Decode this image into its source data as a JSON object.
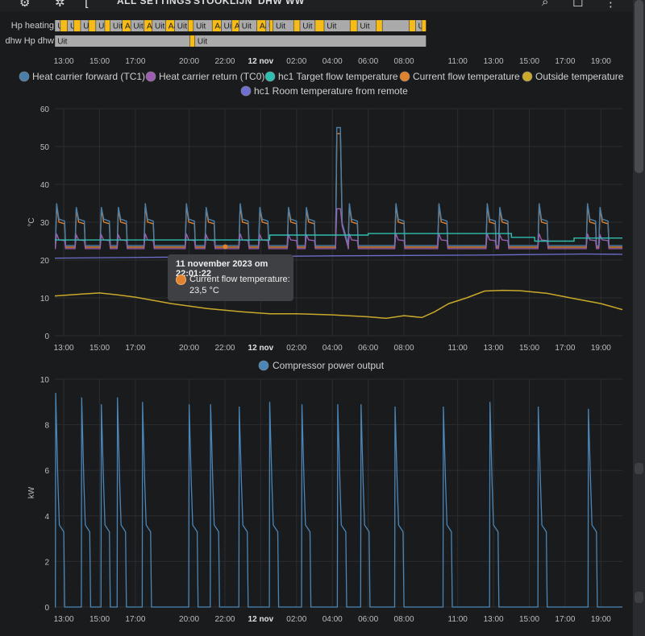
{
  "topbar": {
    "tab_settings": "ALL SETTINGS",
    "tab_stooklijn": "STOOKLIJN",
    "tab_dhw": "DHW WW"
  },
  "timeline": {
    "rows": [
      {
        "label": "Hp heating",
        "segments": [
          {
            "text": "Uit",
            "s": 0.01,
            "e": 0.32,
            "state": "off"
          },
          {
            "text": "",
            "s": 0.32,
            "e": 0.72,
            "state": "on"
          },
          {
            "text": "Uit",
            "s": 0.72,
            "e": 1.07,
            "state": "off"
          },
          {
            "text": "",
            "s": 1.07,
            "e": 1.45,
            "state": "on"
          },
          {
            "text": "Uit",
            "s": 1.45,
            "e": 1.9,
            "state": "off"
          },
          {
            "text": "",
            "s": 1.9,
            "e": 2.3,
            "state": "on"
          },
          {
            "text": "Uit",
            "s": 2.3,
            "e": 2.8,
            "state": "off"
          },
          {
            "text": "",
            "s": 2.8,
            "e": 3.1,
            "state": "on"
          },
          {
            "text": "Uit",
            "s": 3.1,
            "e": 3.78,
            "state": "off"
          },
          {
            "text": "Aan",
            "s": 3.78,
            "e": 4.25,
            "state": "on"
          },
          {
            "text": "Uit",
            "s": 4.25,
            "e": 5.0,
            "state": "off"
          },
          {
            "text": "Aan",
            "s": 5.0,
            "e": 5.45,
            "state": "on"
          },
          {
            "text": "Uit",
            "s": 5.45,
            "e": 6.2,
            "state": "off"
          },
          {
            "text": "Aan",
            "s": 6.2,
            "e": 6.7,
            "state": "on"
          },
          {
            "text": "Uit",
            "s": 6.7,
            "e": 7.45,
            "state": "off"
          },
          {
            "text": "",
            "s": 7.45,
            "e": 7.75,
            "state": "on"
          },
          {
            "text": "Uit",
            "s": 7.75,
            "e": 8.8,
            "state": "off"
          },
          {
            "text": "Aan",
            "s": 8.8,
            "e": 9.3,
            "state": "on"
          },
          {
            "text": "Uit",
            "s": 9.3,
            "e": 9.9,
            "state": "off"
          },
          {
            "text": "Aan",
            "s": 9.9,
            "e": 10.3,
            "state": "on"
          },
          {
            "text": "Uit",
            "s": 10.3,
            "e": 11.3,
            "state": "off"
          },
          {
            "text": "Aan",
            "s": 11.3,
            "e": 11.8,
            "state": "on"
          },
          {
            "text": "Uit",
            "s": 11.8,
            "e": 12.0,
            "state": "off"
          },
          {
            "text": "",
            "s": 12.0,
            "e": 12.2,
            "state": "on"
          },
          {
            "text": "Uit",
            "s": 12.2,
            "e": 13.35,
            "state": "off"
          },
          {
            "text": "",
            "s": 13.35,
            "e": 13.7,
            "state": "on"
          },
          {
            "text": "Uit",
            "s": 13.7,
            "e": 14.55,
            "state": "off"
          },
          {
            "text": "",
            "s": 14.55,
            "e": 15.05,
            "state": "on"
          },
          {
            "text": "Uit",
            "s": 15.05,
            "e": 16.5,
            "state": "off"
          },
          {
            "text": "",
            "s": 16.5,
            "e": 16.9,
            "state": "on"
          },
          {
            "text": "Uit",
            "s": 16.9,
            "e": 17.95,
            "state": "off"
          },
          {
            "text": "",
            "s": 17.95,
            "e": 18.3,
            "state": "on"
          },
          {
            "text": "",
            "s": 18.3,
            "e": 19.8,
            "state": "off"
          },
          {
            "text": "",
            "s": 19.8,
            "e": 20.15,
            "state": "on"
          },
          {
            "text": "Uit",
            "s": 20.15,
            "e": 20.5,
            "state": "off"
          },
          {
            "text": "",
            "s": 20.5,
            "e": 20.75,
            "state": "on"
          }
        ]
      },
      {
        "label": "dhw Hp dhw",
        "segments": [
          {
            "text": "Uit",
            "s": 0.01,
            "e": 7.55,
            "state": "off"
          },
          {
            "text": "",
            "s": 7.55,
            "e": 7.83,
            "state": "on"
          },
          {
            "text": "Uit",
            "s": 7.83,
            "e": 20.75,
            "state": "off"
          }
        ]
      }
    ]
  },
  "axis": {
    "start_hour": 12.5,
    "end_hour": 32.75,
    "ticks": [
      {
        "h": 13,
        "label": "13:00",
        "bold": false
      },
      {
        "h": 15,
        "label": "15:00",
        "bold": false
      },
      {
        "h": 17,
        "label": "17:00",
        "bold": false
      },
      {
        "h": 20,
        "label": "20:00",
        "bold": false
      },
      {
        "h": 22,
        "label": "22:00",
        "bold": false
      },
      {
        "h": 24,
        "label": "12 nov",
        "bold": true
      },
      {
        "h": 26,
        "label": "02:00",
        "bold": false
      },
      {
        "h": 28,
        "label": "04:00",
        "bold": false
      },
      {
        "h": 30,
        "label": "06:00",
        "bold": false
      },
      {
        "h": 32,
        "label": "08:00",
        "bold": false
      },
      {
        "h": 35,
        "label": "11:00",
        "bold": false
      },
      {
        "h": 37,
        "label": "13:00",
        "bold": false
      },
      {
        "h": 39,
        "label": "15:00",
        "bold": false
      },
      {
        "h": 41,
        "label": "17:00",
        "bold": false
      },
      {
        "h": 43,
        "label": "19:00",
        "bold": false
      }
    ]
  },
  "colors": {
    "tc1": "#4a7faa",
    "tc0": "#9c5fb0",
    "target": "#2fbfb0",
    "current": "#e0822e",
    "outside": "#c9a82a",
    "room": "#6f6fcf",
    "compressor": "#4a86b8",
    "on": "#f5bb18",
    "off": "#aaaaaa",
    "grid": "#2c2d30"
  },
  "chart_data": [
    {
      "type": "line",
      "ylabel": "°C",
      "ylim": [
        0,
        60
      ],
      "yticks": [
        0,
        10,
        20,
        30,
        40,
        50,
        60
      ],
      "legend": [
        {
          "name": "Heat carrier forward (TC1)",
          "color": "#4a7faa"
        },
        {
          "name": "Heat carrier return (TC0)",
          "color": "#9c5fb0"
        },
        {
          "name": "hc1 Target flow temperature",
          "color": "#2fbfb0"
        },
        {
          "name": "Current flow temperature",
          "color": "#e0822e"
        },
        {
          "name": "Outside temperature",
          "color": "#c9a82a"
        },
        {
          "name": "hc1 Room temperature from remote",
          "color": "#6f6fcf"
        }
      ],
      "cycles": [
        {
          "t": 12.55,
          "peak": 35
        },
        {
          "t": 13.65,
          "peak": 34
        },
        {
          "t": 15.05,
          "peak": 34
        },
        {
          "t": 16.0,
          "peak": 34
        },
        {
          "t": 17.5,
          "peak": 35
        },
        {
          "t": 19.8,
          "peak": 35
        },
        {
          "t": 20.9,
          "peak": 34
        },
        {
          "t": 22.8,
          "peak": 35
        },
        {
          "t": 23.9,
          "peak": 34
        },
        {
          "t": 25.5,
          "peak": 34
        },
        {
          "t": 26.5,
          "peak": 34
        },
        {
          "t": 28.2,
          "peak": 55
        },
        {
          "t": 28.9,
          "peak": 35
        },
        {
          "t": 31.5,
          "peak": 35
        },
        {
          "t": 33.9,
          "peak": 35
        },
        {
          "t": 36.6,
          "peak": 35
        },
        {
          "t": 37.3,
          "peak": 34
        },
        {
          "t": 39.5,
          "peak": 35
        },
        {
          "t": 42.2,
          "peak": 35
        },
        {
          "t": 42.9,
          "peak": 34
        }
      ],
      "target": [
        {
          "h": 12.5,
          "v": 25.3
        },
        {
          "h": 24.5,
          "v": 25.3
        },
        {
          "h": 24.5,
          "v": 26.6
        },
        {
          "h": 30.0,
          "v": 26.6
        },
        {
          "h": 30.0,
          "v": 27.0
        },
        {
          "h": 38.0,
          "v": 27.0
        },
        {
          "h": 38.0,
          "v": 26.0
        },
        {
          "h": 39.3,
          "v": 26.0
        },
        {
          "h": 39.3,
          "v": 25.0
        },
        {
          "h": 41.5,
          "v": 25.0
        },
        {
          "h": 41.5,
          "v": 25.8
        },
        {
          "h": 44.2,
          "v": 25.8
        }
      ],
      "room": [
        {
          "h": 12.5,
          "v": 20.5
        },
        {
          "h": 20,
          "v": 20.8
        },
        {
          "h": 28,
          "v": 21.1
        },
        {
          "h": 36,
          "v": 21.3
        },
        {
          "h": 42,
          "v": 21.6
        },
        {
          "h": 44.2,
          "v": 21.5
        }
      ],
      "outside": [
        {
          "h": 12.5,
          "v": 10.5
        },
        {
          "h": 14,
          "v": 11.0
        },
        {
          "h": 15,
          "v": 11.3
        },
        {
          "h": 16,
          "v": 10.8
        },
        {
          "h": 17,
          "v": 10.2
        },
        {
          "h": 19,
          "v": 8.5
        },
        {
          "h": 21,
          "v": 7.2
        },
        {
          "h": 23,
          "v": 6.3
        },
        {
          "h": 24.5,
          "v": 5.8
        },
        {
          "h": 26,
          "v": 5.8
        },
        {
          "h": 28,
          "v": 5.5
        },
        {
          "h": 30,
          "v": 5.0
        },
        {
          "h": 31,
          "v": 4.6
        },
        {
          "h": 32,
          "v": 5.3
        },
        {
          "h": 33,
          "v": 4.8
        },
        {
          "h": 33.7,
          "v": 6.3
        },
        {
          "h": 34.5,
          "v": 8.5
        },
        {
          "h": 35.5,
          "v": 10.0
        },
        {
          "h": 36.5,
          "v": 11.8
        },
        {
          "h": 37.5,
          "v": 12.0
        },
        {
          "h": 38.5,
          "v": 11.9
        },
        {
          "h": 40,
          "v": 11.2
        },
        {
          "h": 41.5,
          "v": 9.8
        },
        {
          "h": 43,
          "v": 8.5
        },
        {
          "h": 44.2,
          "v": 6.9
        }
      ],
      "tooltip": {
        "title": "11 november 2023 om 22:01:22",
        "series": "Current flow temperature:",
        "value": "23,5 °C",
        "h": 22.02,
        "v": 23.5
      }
    },
    {
      "type": "line",
      "ylabel": "kW",
      "ylim": [
        0,
        10
      ],
      "yticks": [
        0,
        2,
        4,
        6,
        8,
        10
      ],
      "legend": [
        {
          "name": "Compressor power output",
          "color": "#4a86b8"
        }
      ],
      "peaks": [
        {
          "t": 12.55,
          "v": 9.4
        },
        {
          "t": 14.0,
          "v": 9.2
        },
        {
          "t": 15.1,
          "v": 8.9
        },
        {
          "t": 16.0,
          "v": 9.2
        },
        {
          "t": 17.4,
          "v": 9.0
        },
        {
          "t": 20.0,
          "v": 8.9
        },
        {
          "t": 21.2,
          "v": 8.9
        },
        {
          "t": 22.8,
          "v": 8.8
        },
        {
          "t": 24.5,
          "v": 9.0
        },
        {
          "t": 26.3,
          "v": 8.9
        },
        {
          "t": 28.3,
          "v": 8.9
        },
        {
          "t": 29.6,
          "v": 8.9
        },
        {
          "t": 31.5,
          "v": 8.8
        },
        {
          "t": 34.2,
          "v": 8.8
        },
        {
          "t": 36.8,
          "v": 9.0
        },
        {
          "t": 39.5,
          "v": 8.8
        },
        {
          "t": 42.3,
          "v": 8.7
        }
      ]
    }
  ]
}
